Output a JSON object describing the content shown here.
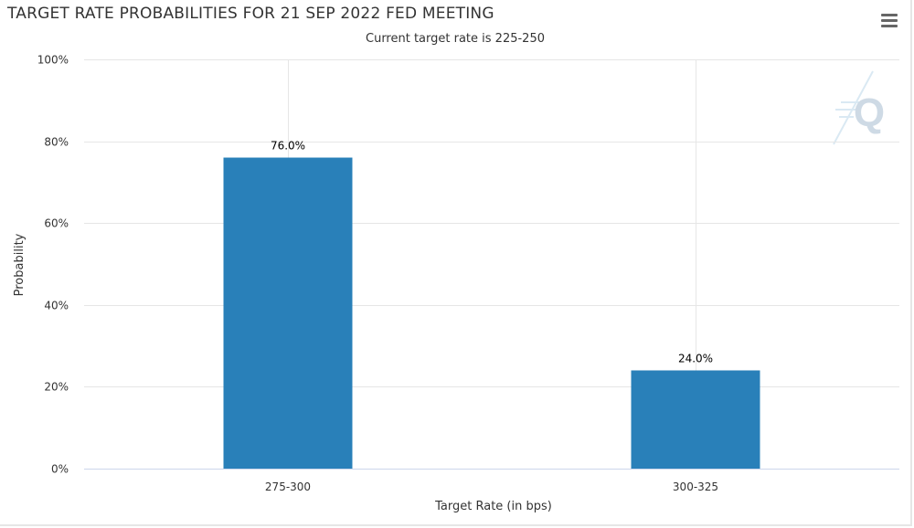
{
  "chart": {
    "title": "TARGET RATE PROBABILITIES FOR 21 SEP 2022 FED MEETING",
    "subtitle": "Current target rate is 225-250"
  },
  "icons": {
    "menu": "hamburger-menu-icon",
    "watermark": "q-logo-icon"
  },
  "colors": {
    "bar": "#2980b9",
    "grid": "#e6e6e6",
    "axis": "#ccd6eb",
    "text": "#333333",
    "watermark": "#c9d6e3"
  },
  "chart_data": {
    "type": "bar",
    "title": "TARGET RATE PROBABILITIES FOR 21 SEP 2022 FED MEETING",
    "subtitle": "Current target rate is 225-250",
    "categories": [
      "275-300",
      "300-325"
    ],
    "values": [
      76.0,
      24.0
    ],
    "data_labels": [
      "76.0%",
      "24.0%"
    ],
    "xlabel": "Target Rate (in bps)",
    "ylabel": "Probability",
    "ylim": [
      0,
      100
    ],
    "yticks": [
      0,
      20,
      40,
      60,
      80,
      100
    ],
    "ytick_labels": [
      "0%",
      "20%",
      "40%",
      "60%",
      "80%",
      "100%"
    ],
    "grid": true,
    "legend": "none"
  }
}
